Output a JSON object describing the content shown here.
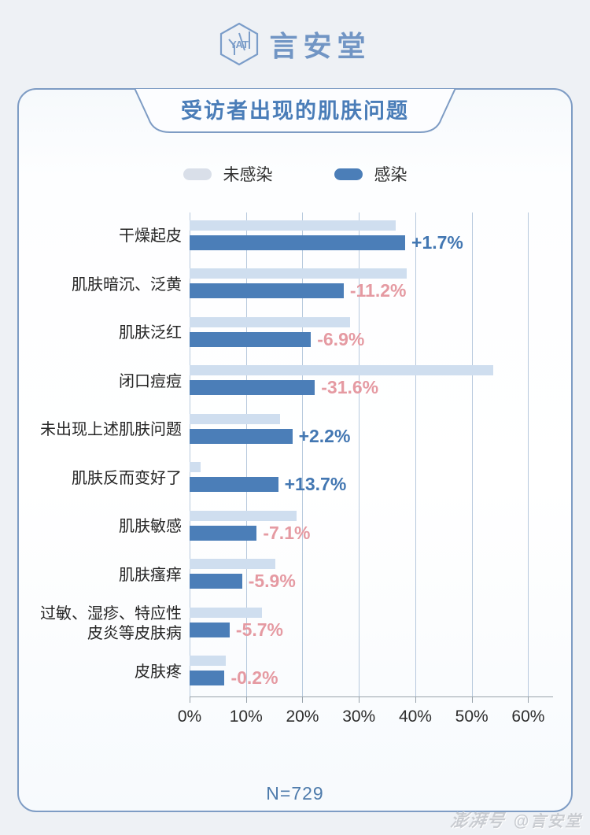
{
  "page": {
    "logo": {
      "icon_text": "YAT",
      "brand": "言安堂"
    },
    "watermark": {
      "platform": "澎湃号",
      "account": "@言安堂"
    }
  },
  "chart_data": {
    "type": "bar",
    "orientation": "horizontal",
    "title": "受访者出现的肌肤问题",
    "categories": [
      "干燥起皮",
      "肌肤暗沉、泛黄",
      "肌肤泛红",
      "闭口痘痘",
      "未出现上述肌肤问题",
      "肌肤反而变好了",
      "肌肤敏感",
      "肌肤瘙痒",
      "过敏、湿疹、特应性\n皮炎等皮肤病",
      "皮肤疼"
    ],
    "series": [
      {
        "name": "未感染",
        "color": "#cfdeef",
        "legend_color": "#d9dfe9",
        "values": [
          36.5,
          38.5,
          28.4,
          53.8,
          16.0,
          2.0,
          19.0,
          15.2,
          12.8,
          6.4
        ]
      },
      {
        "name": "感染",
        "color": "#4b7eb8",
        "legend_color": "#4b7eb8",
        "values": [
          38.2,
          27.3,
          21.5,
          22.2,
          18.2,
          15.7,
          11.9,
          9.3,
          7.1,
          6.2
        ]
      }
    ],
    "diff_labels": [
      "+1.7%",
      "-11.2%",
      "-6.9%",
      "-31.6%",
      "+2.2%",
      "+13.7%",
      "-7.1%",
      "-5.9%",
      "-5.7%",
      "-0.2%"
    ],
    "diff_positive_color": "#4377b2",
    "diff_negative_color": "#e59aa2",
    "x_ticks": [
      "0%",
      "10%",
      "20%",
      "30%",
      "40%",
      "50%",
      "60%"
    ],
    "x_tick_values": [
      0,
      10,
      20,
      30,
      40,
      50,
      60
    ],
    "xlim": [
      0,
      64.4
    ],
    "grid": true,
    "legend_position": "top",
    "note": "N=729",
    "accent_color": "#4a7db8"
  }
}
